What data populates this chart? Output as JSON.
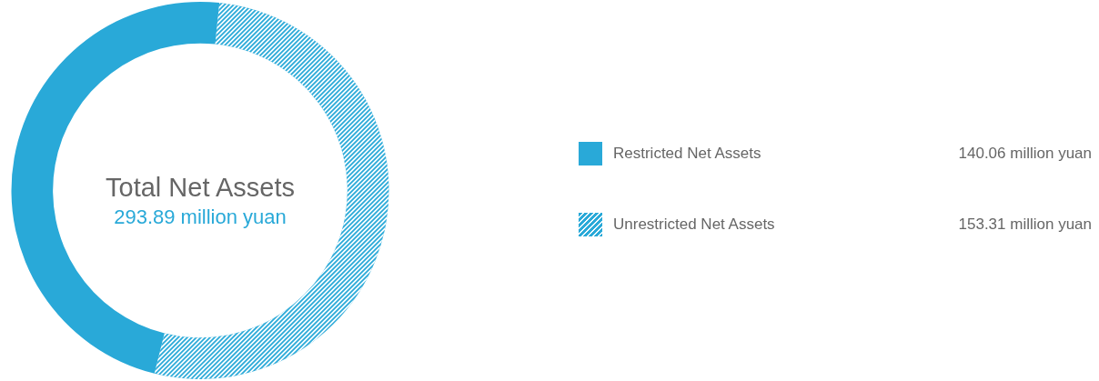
{
  "chart_data": {
    "type": "donut",
    "title": "Total Net Assets",
    "subtitle": "293.89 million yuan",
    "categories": [
      "Restricted Net Assets",
      "Unrestricted Net Assets"
    ],
    "values": [
      140.06,
      153.31
    ],
    "colors": [
      "#29a9d8",
      "#29a9d8"
    ],
    "value_labels": [
      "140.06 million yuan",
      "153.31 million yuan"
    ],
    "legend": "right"
  }
}
